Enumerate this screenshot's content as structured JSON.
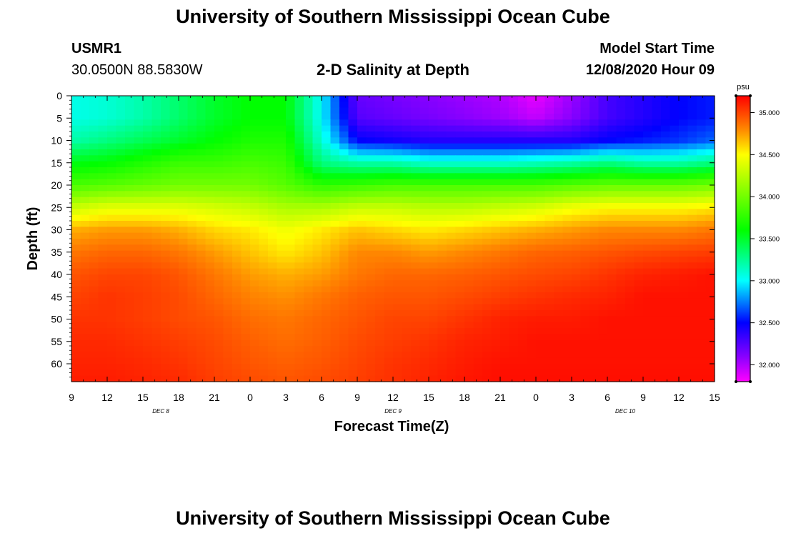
{
  "header": {
    "title": "University of Southern Mississippi Ocean Cube",
    "station_id": "USMR1",
    "station_coords": "30.0500N 88.5830W",
    "subtitle": "2-D Salinity at Depth",
    "model_start_label": "Model Start Time",
    "model_start_value": "12/08/2020 Hour 09"
  },
  "footer": {
    "title": "University of Southern Mississippi Ocean Cube"
  },
  "chart_data": {
    "type": "heatmap",
    "title": "2-D Salinity at Depth",
    "xlabel": "Forecast Time(Z)",
    "ylabel": "Depth (ft)",
    "x_hours": [
      0,
      3,
      6,
      9,
      12,
      15,
      18,
      21,
      24,
      27,
      30,
      33,
      36,
      39,
      42,
      45,
      48,
      51,
      54
    ],
    "x_tick_labels": [
      "9",
      "12",
      "15",
      "18",
      "21",
      "0",
      "3",
      "6",
      "9",
      "12",
      "15",
      "18",
      "21",
      "0",
      "3",
      "6",
      "9",
      "12",
      "15"
    ],
    "day_labels": [
      {
        "label": "DEC 8",
        "hour": 7.5
      },
      {
        "label": "DEC 9",
        "hour": 27
      },
      {
        "label": "DEC 10",
        "hour": 46.5
      }
    ],
    "xlim": [
      0,
      54
    ],
    "y_ticks": [
      0,
      5,
      10,
      15,
      20,
      25,
      30,
      35,
      40,
      45,
      50,
      55,
      60
    ],
    "ylim": [
      0,
      64
    ],
    "colorbar": {
      "unit": "psu",
      "range": [
        31.8,
        35.2
      ],
      "tick_values": [
        32.0,
        32.5,
        33.0,
        33.5,
        34.0,
        34.5,
        35.0
      ],
      "tick_labels": [
        "32.000",
        "32.500",
        "33.000",
        "33.500",
        "34.000",
        "34.500",
        "35.000"
      ],
      "stops": [
        {
          "value": 31.8,
          "color": "#ff00ff"
        },
        {
          "value": 32.1,
          "color": "#8800ff"
        },
        {
          "value": 32.5,
          "color": "#0000ff"
        },
        {
          "value": 33.0,
          "color": "#00ffff"
        },
        {
          "value": 33.6,
          "color": "#00ff00"
        },
        {
          "value": 34.5,
          "color": "#ffff00"
        },
        {
          "value": 34.8,
          "color": "#ff8800"
        },
        {
          "value": 35.2,
          "color": "#ff0000"
        }
      ]
    },
    "depth_grid": [
      0,
      5,
      10,
      15,
      20,
      25,
      30,
      35,
      40,
      45,
      50,
      55,
      60,
      64
    ],
    "grid_note": "salinity (psu) by depth row (ft) across forecast hours",
    "salinity": [
      [
        33.05,
        33.1,
        33.2,
        33.35,
        33.5,
        33.6,
        33.6,
        33.0,
        32.2,
        32.15,
        32.1,
        32.05,
        32.0,
        31.85,
        32.05,
        32.3,
        32.4,
        32.5,
        32.55
      ],
      [
        33.05,
        33.1,
        33.2,
        33.35,
        33.5,
        33.6,
        33.6,
        33.0,
        32.25,
        32.2,
        32.15,
        32.1,
        32.05,
        31.95,
        32.1,
        32.3,
        32.4,
        32.5,
        32.55
      ],
      [
        33.2,
        33.3,
        33.4,
        33.5,
        33.6,
        33.7,
        33.7,
        33.1,
        32.5,
        32.45,
        32.4,
        32.4,
        32.4,
        32.4,
        32.4,
        32.5,
        32.55,
        32.6,
        32.7
      ],
      [
        33.55,
        33.6,
        33.7,
        33.8,
        33.8,
        33.85,
        33.8,
        33.3,
        33.2,
        33.2,
        33.1,
        33.1,
        33.1,
        33.15,
        33.2,
        33.3,
        33.2,
        33.2,
        33.3
      ],
      [
        33.85,
        33.9,
        33.95,
        34.0,
        34.0,
        34.0,
        33.9,
        33.75,
        33.8,
        33.85,
        33.85,
        33.85,
        33.85,
        33.85,
        33.9,
        33.95,
        33.95,
        33.95,
        34.0
      ],
      [
        34.3,
        34.4,
        34.4,
        34.4,
        34.35,
        34.3,
        34.2,
        34.2,
        34.3,
        34.3,
        34.25,
        34.25,
        34.3,
        34.35,
        34.45,
        34.5,
        34.5,
        34.5,
        34.55
      ],
      [
        34.7,
        34.75,
        34.75,
        34.7,
        34.6,
        34.55,
        34.45,
        34.55,
        34.65,
        34.6,
        34.55,
        34.6,
        34.65,
        34.7,
        34.75,
        34.8,
        34.8,
        34.8,
        34.85
      ],
      [
        34.85,
        34.9,
        34.9,
        34.85,
        34.75,
        34.65,
        34.55,
        34.65,
        34.8,
        34.8,
        34.75,
        34.8,
        34.85,
        34.9,
        34.92,
        34.95,
        34.98,
        35.0,
        35.02
      ],
      [
        34.95,
        35.0,
        35.0,
        34.95,
        34.85,
        34.75,
        34.7,
        34.75,
        34.85,
        34.9,
        34.9,
        34.92,
        34.95,
        34.98,
        35.0,
        35.05,
        35.1,
        35.12,
        35.15
      ],
      [
        35.0,
        35.05,
        35.02,
        34.98,
        34.9,
        34.82,
        34.78,
        34.85,
        34.92,
        34.95,
        34.95,
        34.98,
        35.02,
        35.05,
        35.08,
        35.1,
        35.15,
        35.15,
        35.15
      ],
      [
        35.05,
        35.05,
        35.02,
        34.98,
        34.95,
        34.88,
        34.85,
        34.9,
        34.95,
        35.0,
        35.0,
        35.05,
        35.1,
        35.12,
        35.12,
        35.15,
        35.15,
        35.15,
        35.15
      ],
      [
        35.08,
        35.08,
        35.05,
        35.02,
        34.98,
        34.92,
        34.88,
        34.92,
        34.98,
        35.02,
        35.05,
        35.1,
        35.12,
        35.15,
        35.15,
        35.15,
        35.15,
        35.15,
        35.15
      ],
      [
        35.1,
        35.1,
        35.08,
        35.05,
        35.0,
        34.95,
        34.92,
        34.95,
        35.0,
        35.05,
        35.08,
        35.12,
        35.15,
        35.15,
        35.15,
        35.15,
        35.15,
        35.15,
        35.15
      ],
      [
        35.12,
        35.12,
        35.1,
        35.08,
        35.02,
        34.98,
        34.95,
        34.98,
        35.02,
        35.06,
        35.1,
        35.14,
        35.16,
        35.16,
        35.16,
        35.16,
        35.16,
        35.16,
        35.16
      ]
    ]
  }
}
